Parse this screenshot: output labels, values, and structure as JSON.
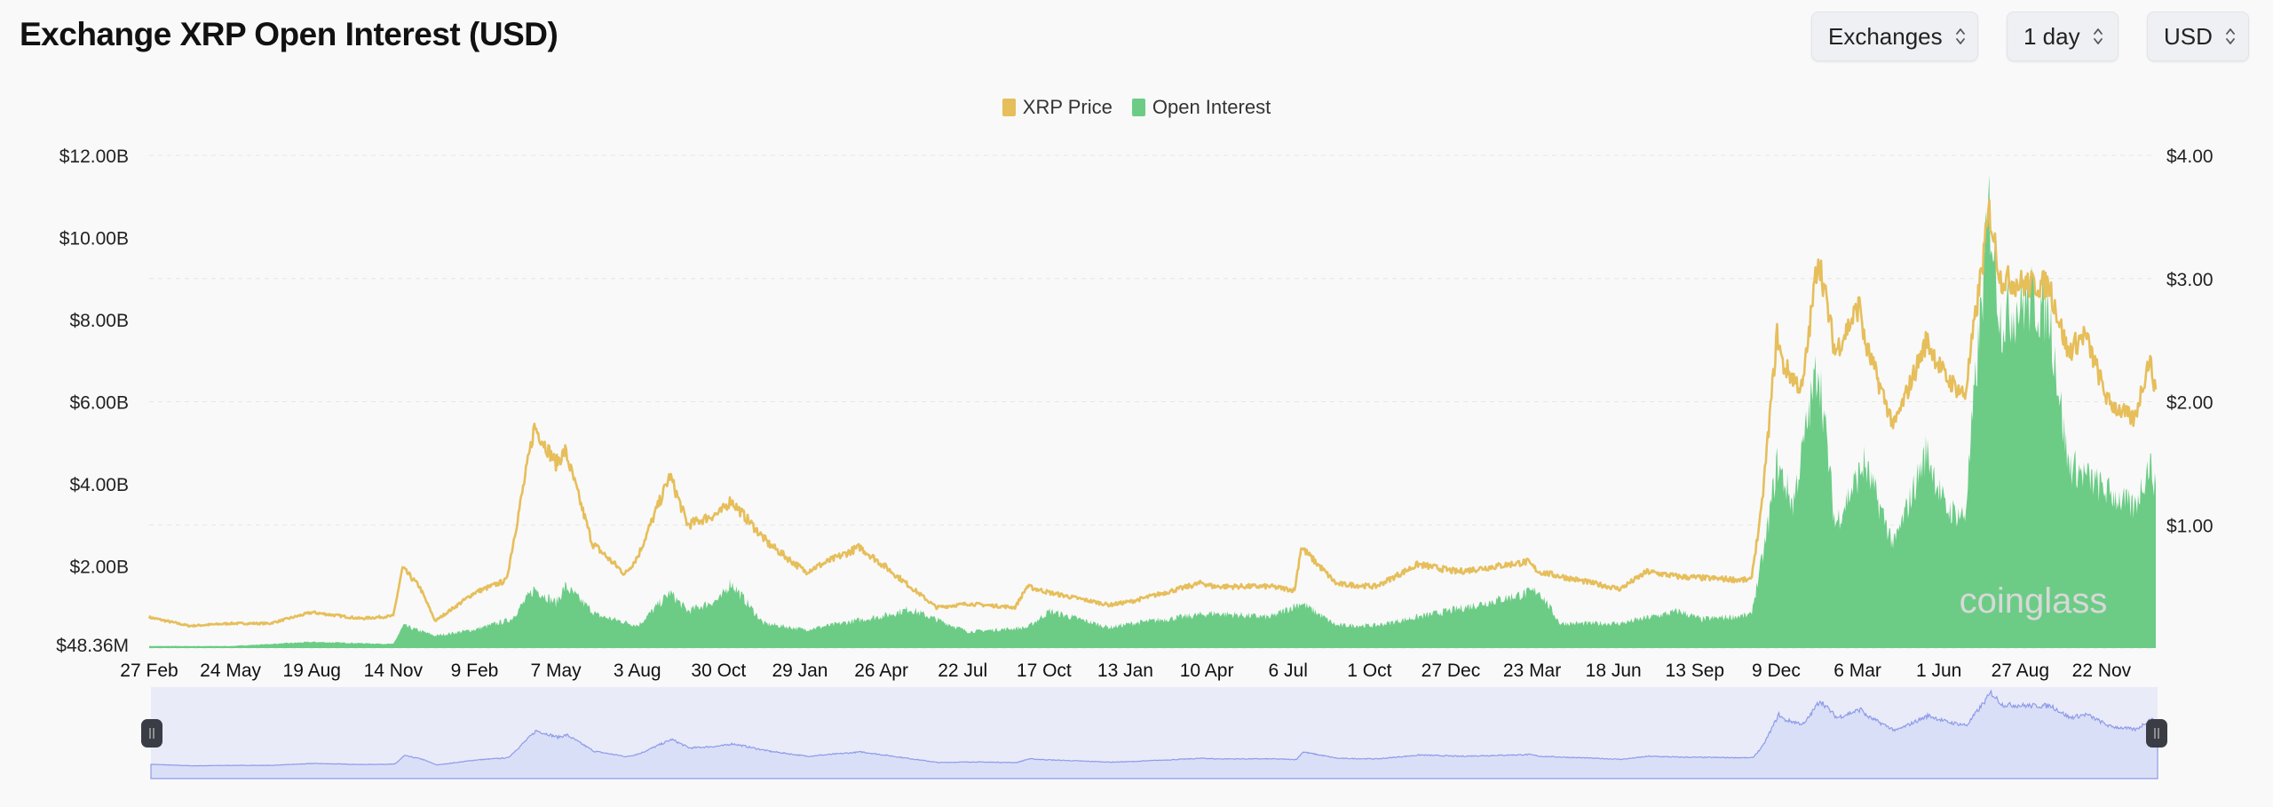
{
  "header": {
    "title": "Exchange XRP Open Interest (USD)",
    "controls": [
      {
        "label": "Exchanges",
        "icon": "updown-chevron-icon"
      },
      {
        "label": "1 day",
        "icon": "updown-chevron-icon"
      },
      {
        "label": "USD",
        "icon": "updown-chevron-icon"
      }
    ]
  },
  "watermark": "coinglass",
  "colors": {
    "price": "#e6be5a",
    "open_interest": "#6ccc86",
    "navigator_fill": "#dadff8",
    "navigator_line": "#8d9be8",
    "navigator_bg": "#e9ebf8",
    "handle": "#3a3d45"
  },
  "chart_data": {
    "type": "area",
    "title": "Exchange XRP Open Interest (USD)",
    "legend": {
      "position": "top-center",
      "entries": [
        "XRP Price",
        "Open Interest"
      ]
    },
    "grid": true,
    "x_ticks": [
      "27 Feb",
      "24 May",
      "19 Aug",
      "14 Nov",
      "9 Feb",
      "7 May",
      "3 Aug",
      "30 Oct",
      "29 Jan",
      "26 Apr",
      "22 Jul",
      "17 Oct",
      "13 Jan",
      "10 Apr",
      "6 Jul",
      "1 Oct",
      "27 Dec",
      "23 Mar",
      "18 Jun",
      "13 Sep",
      "9 Dec",
      "6 Mar",
      "1 Jun",
      "27 Aug",
      "22 Nov"
    ],
    "xlim": [
      "2020-02-27",
      "2026-01-12"
    ],
    "y_left": {
      "ticks": [
        "$48.36M",
        "$2.00B",
        "$4.00B",
        "$6.00B",
        "$8.00B",
        "$10.00B",
        "$12.00B"
      ],
      "range_billions": [
        0,
        12
      ]
    },
    "y_right": {
      "ticks": [
        "$1.00",
        "$2.00",
        "$3.00",
        "$4.00"
      ],
      "range": [
        0,
        4
      ]
    },
    "series": [
      {
        "name": "XRP Price",
        "axis": "right",
        "type": "line",
        "points": [
          [
            "2020-02-27",
            0.25
          ],
          [
            "2020-04-10",
            0.18
          ],
          [
            "2020-05-24",
            0.2
          ],
          [
            "2020-07-05",
            0.2
          ],
          [
            "2020-08-19",
            0.29
          ],
          [
            "2020-10-10",
            0.24
          ],
          [
            "2020-11-14",
            0.26
          ],
          [
            "2020-11-24",
            0.65
          ],
          [
            "2020-12-12",
            0.5
          ],
          [
            "2020-12-29",
            0.22
          ],
          [
            "2021-02-09",
            0.45
          ],
          [
            "2021-03-15",
            0.55
          ],
          [
            "2021-04-14",
            1.8
          ],
          [
            "2021-05-07",
            1.5
          ],
          [
            "2021-05-17",
            1.6
          ],
          [
            "2021-06-15",
            0.85
          ],
          [
            "2021-07-20",
            0.6
          ],
          [
            "2021-08-03",
            0.75
          ],
          [
            "2021-09-06",
            1.4
          ],
          [
            "2021-09-25",
            1.0
          ],
          [
            "2021-10-30",
            1.1
          ],
          [
            "2021-11-10",
            1.2
          ],
          [
            "2021-12-20",
            0.85
          ],
          [
            "2022-01-29",
            0.62
          ],
          [
            "2022-03-28",
            0.82
          ],
          [
            "2022-04-26",
            0.65
          ],
          [
            "2022-06-18",
            0.33
          ],
          [
            "2022-07-22",
            0.36
          ],
          [
            "2022-09-10",
            0.33
          ],
          [
            "2022-09-23",
            0.5
          ],
          [
            "2022-10-17",
            0.45
          ],
          [
            "2022-12-20",
            0.35
          ],
          [
            "2023-01-13",
            0.38
          ],
          [
            "2023-03-29",
            0.53
          ],
          [
            "2023-04-10",
            0.5
          ],
          [
            "2023-06-10",
            0.5
          ],
          [
            "2023-07-06",
            0.47
          ],
          [
            "2023-07-13",
            0.82
          ],
          [
            "2023-08-20",
            0.52
          ],
          [
            "2023-10-01",
            0.5
          ],
          [
            "2023-11-15",
            0.68
          ],
          [
            "2023-12-27",
            0.62
          ],
          [
            "2024-03-11",
            0.7
          ],
          [
            "2024-03-23",
            0.62
          ],
          [
            "2024-06-18",
            0.48
          ],
          [
            "2024-07-17",
            0.62
          ],
          [
            "2024-08-20",
            0.58
          ],
          [
            "2024-09-13",
            0.57
          ],
          [
            "2024-11-05",
            0.55
          ],
          [
            "2024-11-16",
            1.1
          ],
          [
            "2024-12-03",
            2.55
          ],
          [
            "2024-12-09",
            2.3
          ],
          [
            "2024-12-30",
            2.1
          ],
          [
            "2025-01-16",
            3.2
          ],
          [
            "2025-02-03",
            2.4
          ],
          [
            "2025-03-02",
            2.8
          ],
          [
            "2025-03-06",
            2.5
          ],
          [
            "2025-04-07",
            1.8
          ],
          [
            "2025-05-12",
            2.5
          ],
          [
            "2025-06-01",
            2.2
          ],
          [
            "2025-06-22",
            2.05
          ],
          [
            "2025-07-18",
            3.55
          ],
          [
            "2025-07-30",
            3.0
          ],
          [
            "2025-08-27",
            2.95
          ],
          [
            "2025-09-20",
            2.95
          ],
          [
            "2025-10-10",
            2.4
          ],
          [
            "2025-10-28",
            2.55
          ],
          [
            "2025-11-22",
            2.0
          ],
          [
            "2025-12-20",
            1.85
          ],
          [
            "2026-01-05",
            2.35
          ],
          [
            "2026-01-12",
            2.1
          ]
        ]
      },
      {
        "name": "Open Interest",
        "axis": "left",
        "type": "area",
        "unit": "USD billions",
        "points": [
          [
            "2020-02-27",
            0.05
          ],
          [
            "2020-05-24",
            0.05
          ],
          [
            "2020-08-19",
            0.15
          ],
          [
            "2020-11-14",
            0.1
          ],
          [
            "2020-11-25",
            0.55
          ],
          [
            "2020-12-29",
            0.3
          ],
          [
            "2021-02-09",
            0.45
          ],
          [
            "2021-03-20",
            0.7
          ],
          [
            "2021-04-14",
            1.45
          ],
          [
            "2021-05-07",
            1.1
          ],
          [
            "2021-05-17",
            1.5
          ],
          [
            "2021-06-20",
            0.8
          ],
          [
            "2021-08-03",
            0.55
          ],
          [
            "2021-09-06",
            1.35
          ],
          [
            "2021-09-25",
            0.9
          ],
          [
            "2021-10-30",
            1.2
          ],
          [
            "2021-11-10",
            1.6
          ],
          [
            "2021-12-15",
            0.6
          ],
          [
            "2022-01-29",
            0.45
          ],
          [
            "2022-04-26",
            0.8
          ],
          [
            "2022-05-20",
            0.95
          ],
          [
            "2022-07-22",
            0.4
          ],
          [
            "2022-09-23",
            0.5
          ],
          [
            "2022-10-17",
            0.9
          ],
          [
            "2022-12-20",
            0.5
          ],
          [
            "2023-01-13",
            0.6
          ],
          [
            "2023-04-10",
            0.85
          ],
          [
            "2023-06-10",
            0.75
          ],
          [
            "2023-07-13",
            1.1
          ],
          [
            "2023-08-20",
            0.55
          ],
          [
            "2023-10-01",
            0.55
          ],
          [
            "2023-12-27",
            0.95
          ],
          [
            "2024-03-23",
            1.4
          ],
          [
            "2024-04-15",
            0.6
          ],
          [
            "2024-06-18",
            0.6
          ],
          [
            "2024-08-20",
            0.9
          ],
          [
            "2024-09-13",
            0.7
          ],
          [
            "2024-11-05",
            0.8
          ],
          [
            "2024-11-20",
            2.5
          ],
          [
            "2024-12-03",
            4.5
          ],
          [
            "2024-12-20",
            3.5
          ],
          [
            "2025-01-16",
            7.0
          ],
          [
            "2025-02-03",
            3.0
          ],
          [
            "2025-03-06",
            4.5
          ],
          [
            "2025-04-07",
            2.5
          ],
          [
            "2025-05-12",
            4.8
          ],
          [
            "2025-06-01",
            3.4
          ],
          [
            "2025-06-22",
            3.2
          ],
          [
            "2025-07-18",
            10.8
          ],
          [
            "2025-07-30",
            8.0
          ],
          [
            "2025-08-27",
            8.5
          ],
          [
            "2025-09-20",
            8.2
          ],
          [
            "2025-10-10",
            4.5
          ],
          [
            "2025-11-22",
            3.8
          ],
          [
            "2025-12-20",
            3.4
          ],
          [
            "2026-01-05",
            4.5
          ],
          [
            "2026-01-12",
            4.0
          ]
        ]
      }
    ]
  }
}
